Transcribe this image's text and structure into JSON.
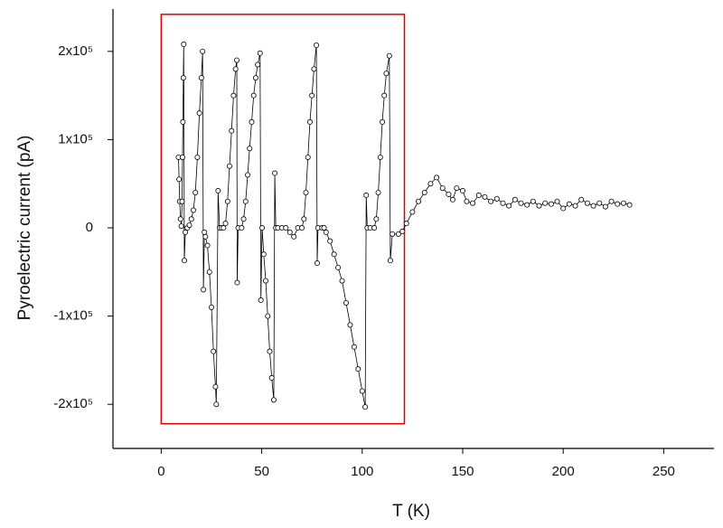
{
  "chart_data": {
    "type": "line",
    "xlabel": "T (K)",
    "ylabel": "Pyroelectric current (pA)",
    "x": [
      8.6,
      8.9,
      9.2,
      9.6,
      10.0,
      10.4,
      10.6,
      10.8,
      11.0,
      11.2,
      11.5,
      12,
      13,
      14,
      15,
      16,
      17,
      18,
      19,
      20,
      20.6,
      21,
      21.5,
      22,
      23,
      24,
      25,
      26,
      27,
      27.4,
      28.3,
      29,
      30,
      31,
      32,
      33,
      34,
      35,
      36,
      37,
      37.6,
      37.8,
      38.3,
      40,
      41,
      42,
      43,
      44,
      45,
      46,
      47,
      48,
      49.2,
      49.6,
      50.2,
      51,
      52,
      53,
      54,
      55,
      56,
      56.5,
      57,
      58,
      60,
      62,
      64,
      66,
      68,
      70,
      71,
      72,
      73,
      74,
      75,
      76,
      77.2,
      77.6,
      78,
      80,
      81,
      82,
      84,
      86,
      88,
      90,
      92,
      94,
      96,
      98,
      100,
      101.5,
      102,
      102.5,
      104,
      106,
      107,
      108,
      109,
      110,
      111,
      112,
      113.5,
      114,
      115,
      118,
      120,
      122,
      125,
      128,
      131,
      134,
      137,
      140,
      143,
      145,
      147,
      150,
      152,
      155,
      158,
      161,
      164,
      167,
      170,
      173,
      176,
      179,
      182,
      185,
      188,
      191,
      194,
      197,
      200,
      203,
      206,
      209,
      212,
      215,
      218,
      221,
      224,
      227,
      230,
      233
    ],
    "values": [
      80000,
      55000,
      30000,
      10000,
      2000,
      30000,
      80000,
      120000,
      170000,
      208000,
      -37000,
      -5000,
      0,
      3000,
      10000,
      20000,
      40000,
      80000,
      130000,
      170000,
      200000,
      -70000,
      -5000,
      -10000,
      -20000,
      -50000,
      -90000,
      -140000,
      -180000,
      -200000,
      42000,
      0,
      0,
      0,
      5000,
      30000,
      70000,
      110000,
      150000,
      180000,
      190000,
      -62000,
      0,
      0,
      10000,
      30000,
      60000,
      90000,
      120000,
      150000,
      170000,
      185000,
      198000,
      -82000,
      0,
      -30000,
      -60000,
      -100000,
      -140000,
      -170000,
      -195000,
      62000,
      0,
      0,
      0,
      0,
      -5000,
      -10000,
      0,
      0,
      10000,
      40000,
      80000,
      120000,
      150000,
      180000,
      207000,
      -40000,
      0,
      0,
      0,
      -5000,
      -15000,
      -30000,
      -45000,
      -60000,
      -85000,
      -110000,
      -135000,
      -160000,
      -185000,
      -203000,
      37000,
      0,
      0,
      0,
      10000,
      40000,
      80000,
      120000,
      150000,
      175000,
      195000,
      -37000,
      -7000,
      -7000,
      -4000,
      5000,
      18000,
      30000,
      40000,
      50000,
      57000,
      45000,
      38000,
      32000,
      45000,
      42000,
      30000,
      28000,
      37000,
      35000,
      30000,
      33000,
      28000,
      25000,
      32000,
      28000,
      26000,
      30000,
      25000,
      28000,
      27000,
      30000,
      22000,
      27000,
      25000,
      32000,
      28000,
      25000,
      28000,
      24000,
      30000,
      27000,
      28000,
      26000
    ],
    "color": "#000000",
    "xlim": [
      -24,
      275
    ],
    "xticks": [
      0,
      50,
      100,
      150,
      200,
      250
    ],
    "ylim": [
      -250000,
      248000
    ],
    "yticks": [
      {
        "value": -200000,
        "label": "-2x10⁵"
      },
      {
        "value": -100000,
        "label": "-1x10⁵"
      },
      0,
      {
        "value": 100000,
        "label": "1x10⁵"
      },
      {
        "value": 200000,
        "label": "2x10⁵"
      }
    ],
    "highlight": {
      "xlim": [
        0,
        121
      ],
      "ylim": [
        -222000,
        242000
      ],
      "color": "#e00000"
    }
  }
}
